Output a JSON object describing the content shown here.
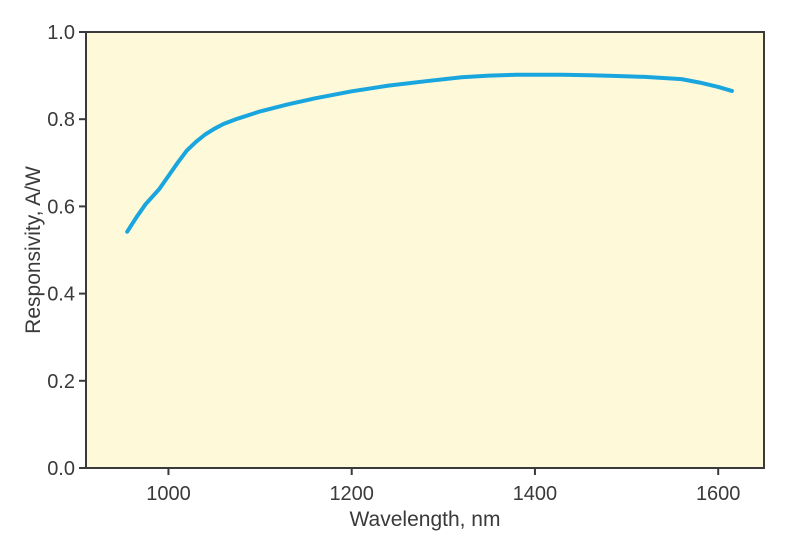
{
  "chart_data": {
    "type": "line",
    "xlabel": "Wavelength, nm",
    "ylabel": "Responsivity, A/W",
    "xlim": [
      910,
      1650
    ],
    "ylim": [
      0,
      1.0
    ],
    "x_ticks": [
      1000,
      1200,
      1400,
      1600
    ],
    "y_ticks": [
      0.0,
      0.2,
      0.4,
      0.6,
      0.8,
      1.0
    ],
    "x_tick_labels": [
      "1000",
      "1200",
      "1400",
      "1600"
    ],
    "y_tick_labels": [
      "0.0",
      "0.2",
      "0.4",
      "0.6",
      "0.8",
      "1.0"
    ],
    "grid": false,
    "legend": "none",
    "colors": {
      "plot_background": "#fdf9d9",
      "axis_frame": "#3a3a3a",
      "line": "#19a6df"
    },
    "series": [
      {
        "x": [
          955,
          965,
          975,
          990,
          1000,
          1010,
          1020,
          1030,
          1040,
          1050,
          1060,
          1075,
          1100,
          1130,
          1160,
          1200,
          1240,
          1280,
          1320,
          1350,
          1380,
          1400,
          1430,
          1460,
          1490,
          1520,
          1560,
          1580,
          1600,
          1615
        ],
        "y": [
          0.542,
          0.575,
          0.605,
          0.64,
          0.67,
          0.7,
          0.728,
          0.748,
          0.765,
          0.778,
          0.789,
          0.801,
          0.818,
          0.834,
          0.848,
          0.864,
          0.877,
          0.887,
          0.896,
          0.9,
          0.902,
          0.902,
          0.902,
          0.901,
          0.899,
          0.897,
          0.892,
          0.884,
          0.874,
          0.865
        ]
      }
    ]
  }
}
